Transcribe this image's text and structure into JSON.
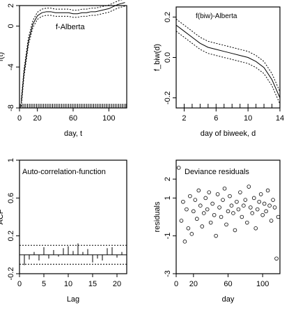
{
  "chart_data": [
    {
      "id": "p1",
      "type": "line",
      "ylabel": "f(t)",
      "xlabel": "day, t",
      "legend": "f-Alberta",
      "xlim": [
        0,
        120
      ],
      "ylim": [
        -8,
        2
      ],
      "xticks": [
        0,
        20,
        60,
        100
      ],
      "yticks": [
        -8,
        -4,
        0,
        2
      ],
      "series": [
        {
          "name": "f-Alberta",
          "x": [
            2,
            5,
            10,
            15,
            20,
            25,
            30,
            35,
            40,
            45,
            50,
            55,
            60,
            65,
            70,
            75,
            80,
            85,
            90,
            95,
            100,
            105,
            110,
            114,
            118
          ],
          "y": [
            -7.5,
            -4.6,
            -1.5,
            0.2,
            1.0,
            1.3,
            1.4,
            1.4,
            1.3,
            1.3,
            1.3,
            1.3,
            1.2,
            1.2,
            1.3,
            1.3,
            1.4,
            1.4,
            1.5,
            1.6,
            1.7,
            1.9,
            2.1,
            2.2,
            2.3
          ]
        }
      ]
    },
    {
      "id": "p2",
      "type": "line",
      "ylabel": "f_biw(d)",
      "xlabel": "day of biweek, d",
      "legend": "f(biw)-Alberta",
      "xlim": [
        1,
        14
      ],
      "ylim": [
        -0.25,
        0.25
      ],
      "xticks": [
        2,
        6,
        10,
        14
      ],
      "yticks": [
        -0.2,
        0.0,
        0.2
      ],
      "series": [
        {
          "name": "f(biw)-Alberta",
          "x": [
            1,
            2,
            3,
            4,
            5,
            6,
            7,
            8,
            9,
            10,
            11,
            12,
            13,
            14
          ],
          "y": [
            0.16,
            0.13,
            0.1,
            0.07,
            0.05,
            0.04,
            0.03,
            0.02,
            0.01,
            0.0,
            -0.02,
            -0.05,
            -0.11,
            -0.2
          ]
        }
      ]
    },
    {
      "id": "p3",
      "type": "bar",
      "ylabel": "ACF",
      "xlabel": "Lag",
      "legend": "Auto-correlation-function",
      "xlim": [
        0,
        22
      ],
      "ylim": [
        -0.2,
        1.0
      ],
      "xticks": [
        0,
        5,
        10,
        15,
        20
      ],
      "yticks": [
        -0.2,
        0.2,
        0.6,
        1.0
      ],
      "lags": [
        0,
        1,
        2,
        3,
        4,
        5,
        6,
        7,
        8,
        9,
        10,
        11,
        12,
        13,
        14,
        15,
        16,
        17,
        18,
        19,
        20,
        21
      ],
      "acf": [
        1.0,
        -0.11,
        -0.05,
        0.03,
        -0.06,
        0.08,
        -0.04,
        0.05,
        -0.02,
        0.07,
        0.09,
        0.04,
        0.12,
        0.03,
        0.06,
        -0.08,
        -0.04,
        -0.06,
        0.07,
        0.08,
        -0.03,
        0.03
      ],
      "ci": [
        -0.1,
        0.1
      ]
    },
    {
      "id": "p4",
      "type": "scatter",
      "ylabel": "residuals",
      "xlabel": "day",
      "legend": "Deviance residuals",
      "xlim": [
        0,
        120
      ],
      "ylim": [
        -3,
        3
      ],
      "xticks": [
        0,
        20,
        60,
        100
      ],
      "yticks": [
        -3,
        -1,
        1,
        2
      ],
      "x": [
        3,
        6,
        8,
        10,
        12,
        14,
        16,
        18,
        20,
        22,
        24,
        26,
        28,
        30,
        32,
        34,
        36,
        38,
        40,
        42,
        44,
        46,
        48,
        50,
        52,
        54,
        56,
        58,
        60,
        62,
        64,
        66,
        68,
        70,
        72,
        74,
        76,
        78,
        80,
        82,
        84,
        86,
        88,
        90,
        92,
        94,
        96,
        98,
        100,
        102,
        104,
        106,
        108,
        110,
        112,
        114,
        116,
        118
      ],
      "y": [
        2.6,
        -0.2,
        0.8,
        -1.3,
        0.4,
        -0.6,
        1.1,
        -0.9,
        0.3,
        0.9,
        -0.1,
        1.4,
        0.6,
        -0.5,
        0.2,
        1.0,
        0.4,
        1.3,
        -0.3,
        0.7,
        0.1,
        -1.0,
        1.2,
        0.5,
        0.0,
        0.9,
        1.5,
        -0.4,
        0.3,
        1.1,
        0.6,
        0.2,
        -0.7,
        0.8,
        0.4,
        1.3,
        0.0,
        0.6,
        0.9,
        -0.3,
        1.6,
        0.5,
        0.2,
        1.0,
        -0.6,
        0.4,
        0.8,
        1.2,
        0.1,
        0.7,
        0.3,
        1.4,
        0.6,
        -0.2,
        0.9,
        0.5,
        -2.2,
        0.0
      ]
    }
  ]
}
